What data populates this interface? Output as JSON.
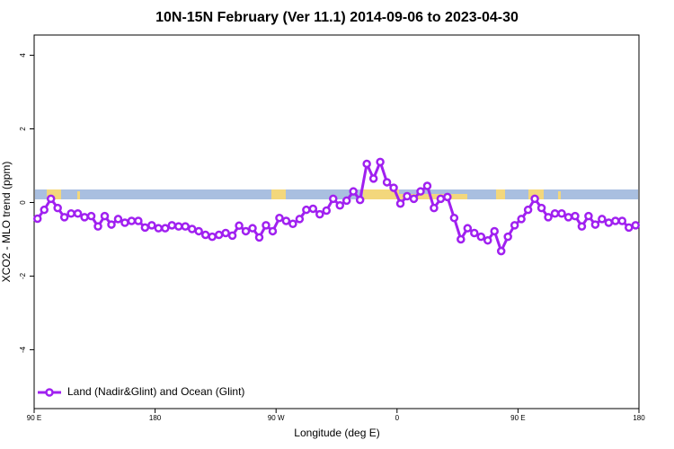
{
  "chart_data": {
    "type": "line",
    "title": "10N-15N February (Ver 11.1)   2014-09-06 to 2023-04-30",
    "x_label": "Longitude (deg E)",
    "y_label": "XCO2 - MLO trend (ppm)",
    "x": [
      92.5,
      97.5,
      102.5,
      107.5,
      112.5,
      117.5,
      122.5,
      127.5,
      132.5,
      137.5,
      142.5,
      147.5,
      152.5,
      157.5,
      162.5,
      167.5,
      172.5,
      177.5,
      182.5,
      187.5,
      192.5,
      197.5,
      202.5,
      207.5,
      212.5,
      217.5,
      222.5,
      227.5,
      232.5,
      237.5,
      242.5,
      247.5,
      252.5,
      257.5,
      262.5,
      267.5,
      272.5,
      277.5,
      282.5,
      287.5,
      292.5,
      297.5,
      302.5,
      307.5,
      312.5,
      317.5,
      322.5,
      327.5,
      332.5,
      337.5,
      342.5,
      347.5,
      352.5,
      357.5,
      362.5,
      367.5,
      372.5,
      377.5,
      382.5,
      387.5,
      392.5,
      397.5,
      402.5,
      407.5,
      412.5,
      417.5,
      422.5,
      427.5,
      432.5,
      437.5,
      442.5,
      447.5,
      452.5,
      457.5,
      462.5,
      467.5,
      472.5,
      477.5,
      482.5,
      487.5,
      492.5,
      497.5,
      502.5,
      507.5,
      512.5,
      517.5,
      522.5,
      527.5,
      532.5,
      537.5
    ],
    "series": [
      {
        "name": "Land (Nadir&Glint) and Ocean (Glint)",
        "color": "#a020f0",
        "values": [
          -0.44,
          -0.2,
          0.1,
          -0.15,
          -0.4,
          -0.3,
          -0.3,
          -0.4,
          -0.37,
          -0.65,
          -0.37,
          -0.6,
          -0.45,
          -0.55,
          -0.5,
          -0.5,
          -0.68,
          -0.62,
          -0.7,
          -0.7,
          -0.62,
          -0.65,
          -0.65,
          -0.72,
          -0.78,
          -0.88,
          -0.93,
          -0.88,
          -0.83,
          -0.9,
          -0.63,
          -0.78,
          -0.7,
          -0.95,
          -0.62,
          -0.78,
          -0.42,
          -0.5,
          -0.58,
          -0.45,
          -0.2,
          -0.17,
          -0.32,
          -0.22,
          0.1,
          -0.08,
          0.05,
          0.3,
          0.07,
          1.05,
          0.65,
          1.1,
          0.55,
          0.4,
          -0.03,
          0.17,
          0.1,
          0.3,
          0.45,
          -0.15,
          0.1,
          0.15,
          -0.42,
          -1.0,
          -0.7,
          -0.83,
          -0.93,
          -1.03,
          -0.78,
          -1.32,
          -0.93,
          -0.62,
          -0.45,
          -0.2,
          0.1,
          -0.15,
          -0.4,
          -0.3,
          -0.3,
          -0.4,
          -0.37,
          -0.65,
          -0.37,
          -0.6,
          -0.45,
          -0.55,
          -0.5,
          -0.5,
          -0.68,
          -0.62
        ]
      }
    ],
    "xlim": [
      90,
      540
    ],
    "xticks": [
      {
        "value": 90,
        "label": "90 E"
      },
      {
        "value": 180,
        "label": "180"
      },
      {
        "value": 270,
        "label": "90 W"
      },
      {
        "value": 360,
        "label": "0"
      },
      {
        "value": 450,
        "label": "90 E"
      },
      {
        "value": 540,
        "label": "180"
      }
    ],
    "ylim": [
      -5.6,
      4.55
    ],
    "yticks": [
      -4,
      -2,
      0,
      2,
      4
    ],
    "legend": "bottom left"
  }
}
